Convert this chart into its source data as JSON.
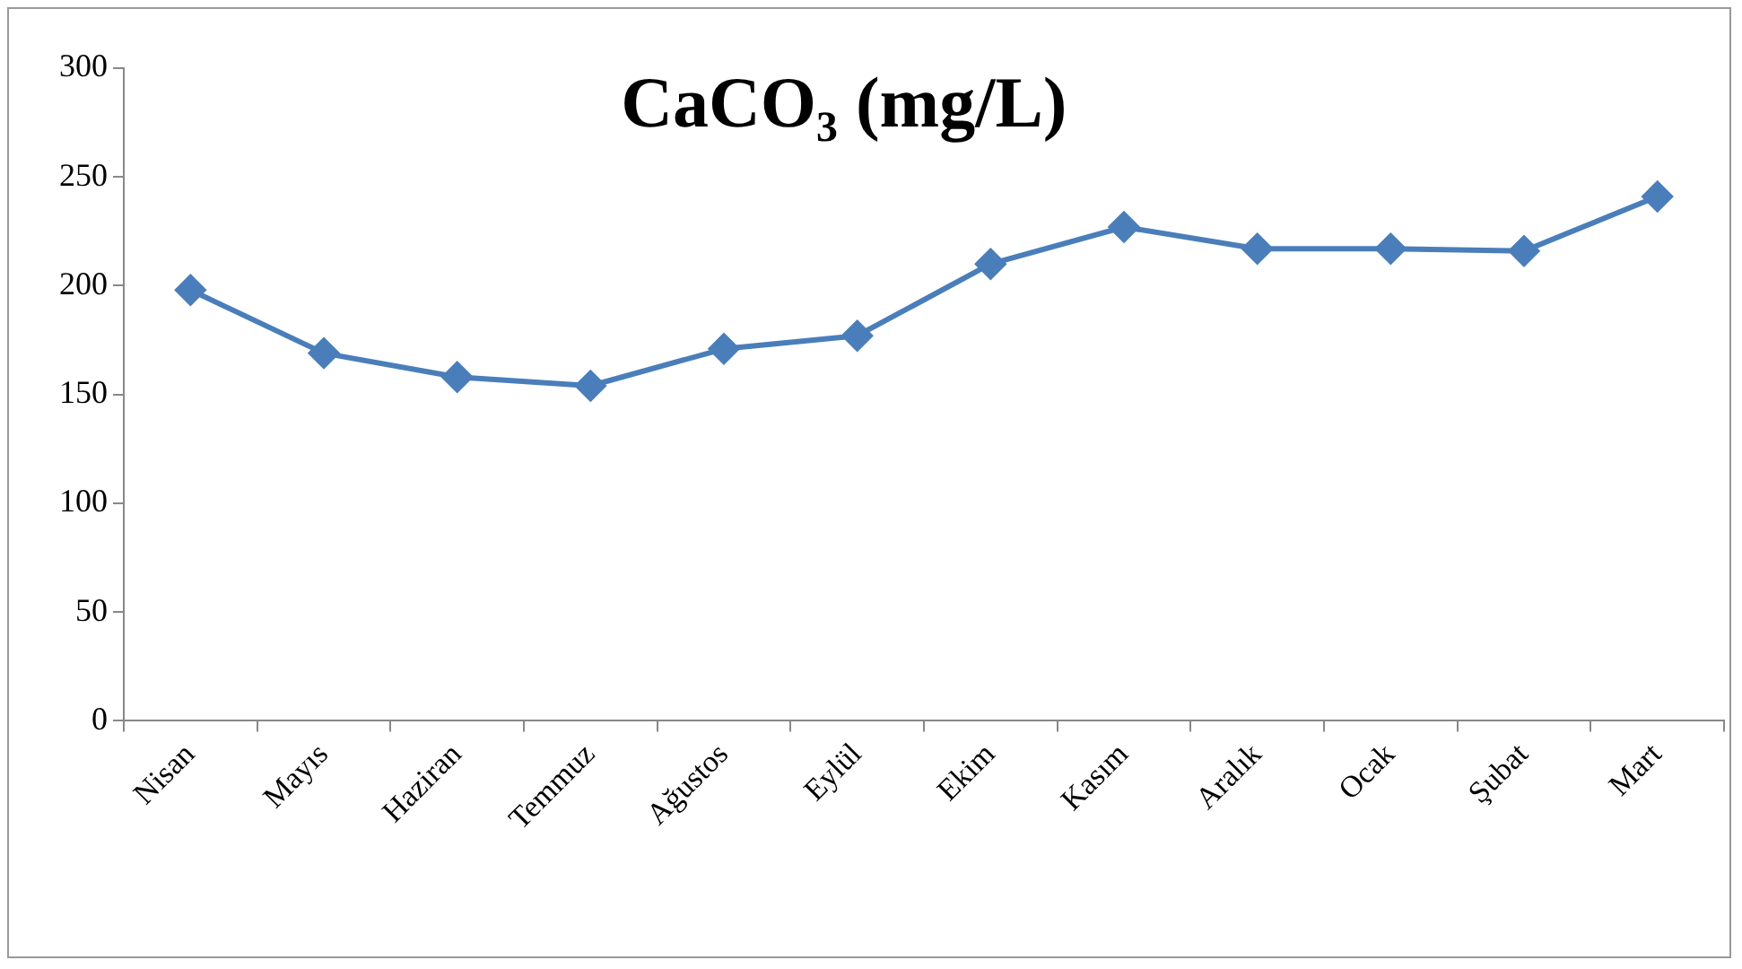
{
  "chart_data": {
    "type": "line",
    "title": "CaCO₃ (mg/L)",
    "categories": [
      "Nisan",
      "Mayıs",
      "Haziran",
      "Temmuz",
      "Ağustos",
      "Eylül",
      "Ekim",
      "Kasım",
      "Aralık",
      "Ocak",
      "Şubat",
      "Mart"
    ],
    "values": [
      198,
      169,
      158,
      154,
      171,
      177,
      210,
      227,
      217,
      217,
      216,
      241
    ],
    "color": "#4a7ebb",
    "marker": "diamond",
    "line_style": "solid",
    "ylim": [
      0,
      300
    ],
    "yticks": [
      0,
      50,
      100,
      150,
      200,
      250,
      300
    ],
    "grid": false,
    "legend": false
  }
}
